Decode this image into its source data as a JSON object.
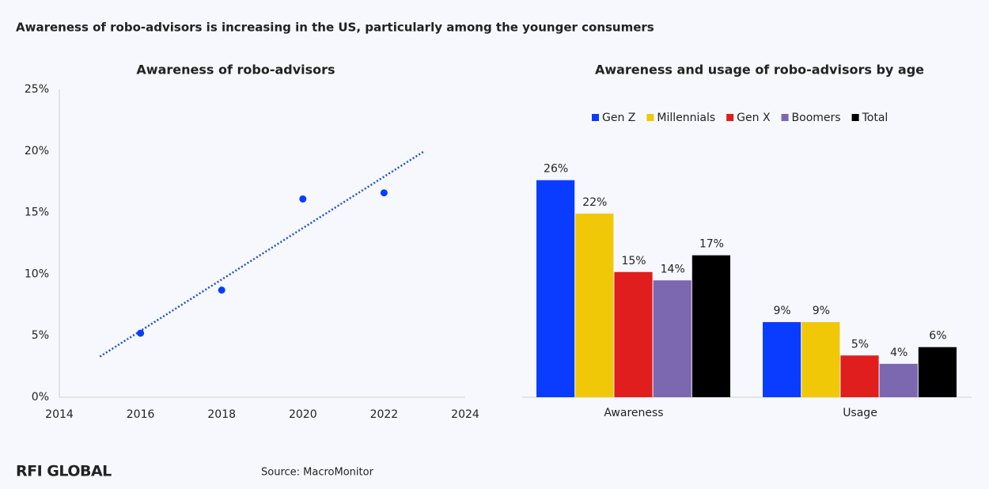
{
  "header": {
    "title": "Awareness of robo-advisors is increasing in the US, particularly among the younger consumers"
  },
  "footer": {
    "logo": "RFI GLOBAL",
    "source": "Source: MacroMonitor"
  },
  "chart_data": [
    {
      "type": "scatter",
      "title": "Awareness of robo-advisors",
      "x": [
        2016,
        2018,
        2020,
        2022
      ],
      "values": [
        5.2,
        8.7,
        16.1,
        16.6
      ],
      "color": "#0a3cff",
      "trendline": {
        "x": [
          2015,
          2023
        ],
        "values": [
          3.3,
          20
        ],
        "color": "#1a4fe0"
      },
      "xlim": [
        2014,
        2024
      ],
      "xticks": [
        2014,
        2016,
        2018,
        2020,
        2022,
        2024
      ],
      "ylim": [
        0,
        25
      ],
      "yticks": [
        {
          "value": 0,
          "label": "0%"
        },
        {
          "value": 5,
          "label": "5%"
        },
        {
          "value": 10,
          "label": "10%"
        },
        {
          "value": 15,
          "label": "15%"
        },
        {
          "value": 20,
          "label": "20%"
        },
        {
          "value": 25,
          "label": "25%"
        }
      ]
    },
    {
      "type": "bar",
      "title": "Awareness and usage of robo-advisors by age",
      "categories": [
        "Awareness",
        "Usage"
      ],
      "series": [
        {
          "name": "Gen Z",
          "color": "#0a3cff",
          "values": [
            26,
            9
          ],
          "value_labels": [
            "26%",
            "9%"
          ]
        },
        {
          "name": "Millennials",
          "color": "#f0c808",
          "values": [
            22,
            9
          ],
          "value_labels": [
            "22%",
            "9%"
          ]
        },
        {
          "name": "Gen X",
          "color": "#e01e1e",
          "values": [
            15,
            5
          ],
          "value_labels": [
            "15%",
            "5%"
          ]
        },
        {
          "name": "Boomers",
          "color": "#7b68b0",
          "values": [
            14,
            4
          ],
          "value_labels": [
            "14%",
            "4%"
          ]
        },
        {
          "name": "Total",
          "color": "#000000",
          "values": [
            17,
            6
          ],
          "value_labels": [
            "17%",
            "6%"
          ]
        }
      ]
    }
  ]
}
